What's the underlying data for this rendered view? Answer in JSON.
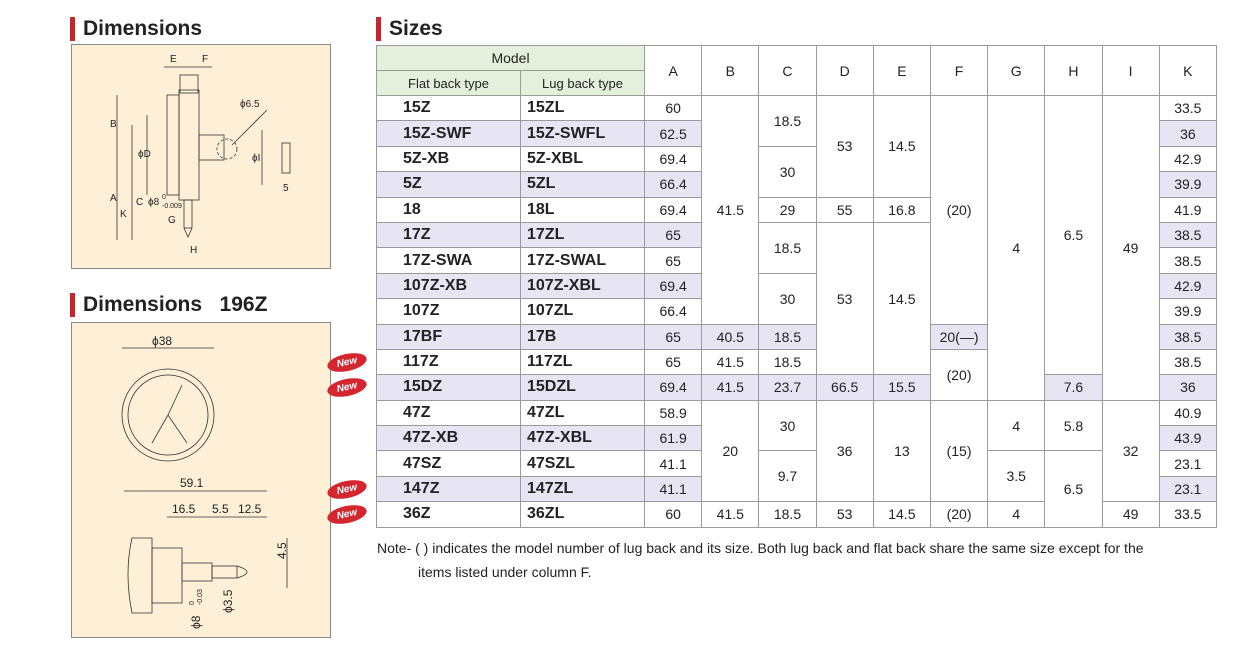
{
  "dimensions": {
    "title": "Dimensions",
    "labels": [
      "E",
      "F",
      "B",
      "ϕD",
      "ϕ6.5",
      "ϕI",
      "A",
      "C",
      "K",
      "ϕ8",
      "0",
      "-0.009",
      "G",
      "H",
      "5"
    ]
  },
  "dimensions_196z": {
    "title": "Dimensions",
    "model": "196Z",
    "labels": [
      "ϕ38",
      "59.1",
      "16.5",
      "5.5",
      "12.5",
      "4.5",
      "ϕ3.5",
      "ϕ8",
      "0",
      "-0.03"
    ]
  },
  "sizes": {
    "title": "Sizes",
    "header": {
      "model": "Model",
      "flat": "Flat back type",
      "lug": "Lug back type",
      "columns": [
        "A",
        "B",
        "C",
        "D",
        "E",
        "F",
        "G",
        "H",
        "I",
        "K"
      ]
    },
    "rows": [
      {
        "cells": [
          "15Z",
          "15ZL",
          60,
          41.5,
          18.5,
          53,
          14.5,
          "(20)",
          4,
          6.5,
          49,
          33.5
        ]
      },
      {
        "cells": [
          "15Z-SWF",
          "15Z-SWFL",
          62.5,
          null,
          null,
          null,
          null,
          null,
          null,
          null,
          null,
          36
        ]
      },
      {
        "cells": [
          "5Z-XB",
          "5Z-XBL",
          69.4,
          null,
          30,
          null,
          null,
          null,
          null,
          null,
          null,
          42.9
        ]
      },
      {
        "cells": [
          "5Z",
          "5ZL",
          66.4,
          null,
          null,
          null,
          null,
          null,
          null,
          null,
          null,
          39.9
        ]
      },
      {
        "cells": [
          "18",
          "18L",
          69.4,
          null,
          29,
          55,
          16.8,
          null,
          null,
          null,
          null,
          41.9
        ]
      },
      {
        "cells": [
          "17Z",
          "17ZL",
          65,
          null,
          18.5,
          53,
          14.5,
          null,
          null,
          null,
          null,
          38.5
        ]
      },
      {
        "cells": [
          "17Z-SWA",
          "17Z-SWAL",
          65,
          null,
          null,
          null,
          null,
          null,
          null,
          null,
          null,
          38.5
        ]
      },
      {
        "cells": [
          "107Z-XB",
          "107Z-XBL",
          69.4,
          null,
          30,
          null,
          null,
          null,
          null,
          null,
          null,
          42.9
        ]
      },
      {
        "cells": [
          "107Z",
          "107ZL",
          66.4,
          null,
          null,
          null,
          null,
          null,
          null,
          null,
          null,
          39.9
        ]
      },
      {
        "cells": [
          "17BF",
          "17B",
          65,
          40.5,
          18.5,
          null,
          null,
          "20(—)",
          null,
          null,
          null,
          38.5
        ]
      },
      {
        "badge": "New",
        "cells": [
          "117Z",
          "117ZL",
          65,
          41.5,
          18.5,
          null,
          null,
          "(20)",
          null,
          null,
          null,
          38.5
        ]
      },
      {
        "badge": "New",
        "cells": [
          "15DZ",
          "15DZL",
          69.4,
          41.5,
          23.7,
          66.5,
          15.5,
          null,
          null,
          7.6,
          null,
          36
        ]
      },
      {
        "cells": [
          "47Z",
          "47ZL",
          58.9,
          20,
          30,
          36,
          13,
          "(15)",
          4,
          5.8,
          32,
          40.9
        ]
      },
      {
        "cells": [
          "47Z-XB",
          "47Z-XBL",
          61.9,
          null,
          null,
          null,
          null,
          null,
          null,
          null,
          null,
          43.9
        ]
      },
      {
        "cells": [
          "47SZ",
          "47SZL",
          41.1,
          null,
          9.7,
          null,
          null,
          null,
          3.5,
          6.5,
          null,
          23.1
        ]
      },
      {
        "badge": "New",
        "cells": [
          "147Z",
          "147ZL",
          41.1,
          null,
          null,
          null,
          null,
          null,
          null,
          null,
          null,
          23.1
        ]
      },
      {
        "badge": "New",
        "cells": [
          "36Z",
          "36ZL",
          60,
          41.5,
          18.5,
          53,
          14.5,
          "(20)",
          4,
          null,
          49,
          33.5
        ]
      }
    ]
  },
  "note": {
    "prefix": "Note-",
    "lines": [
      "( ) indicates the model number of lug back and its size.  Both lug back and flat back share the same size except for the",
      "items listed under column F."
    ]
  }
}
